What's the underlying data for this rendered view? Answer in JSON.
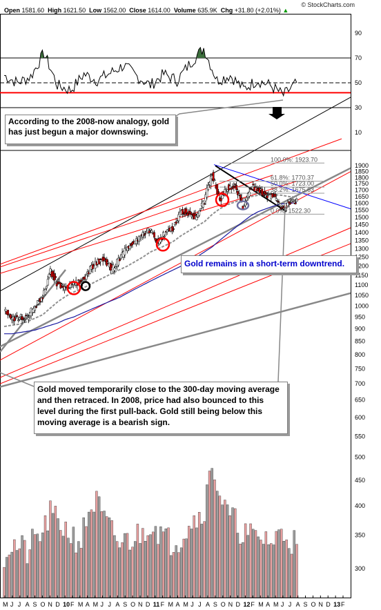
{
  "header": {
    "credit": "© StockCharts.com",
    "open_label": "Open",
    "open": "1581.60",
    "high_label": "High",
    "high": "1621.50",
    "low_label": "Low",
    "low": "1562.00",
    "close_label": "Close",
    "close": "1614.00",
    "volume_label": "Volume",
    "volume": "635.9K",
    "chg_label": "Chg",
    "chg": "+31.80 (+2.01%)",
    "up_arrow": "▲"
  },
  "annotations": {
    "rsi_note": "According to the 2008-now analogy, gold has just begun a major downswing.",
    "downtrend_note": "Gold remains in a short-term downtrend.",
    "ma_note": "Gold moved temporarily close to the 300-day moving average and then retraced. In 2008, price had also bounced to this level during the first pull-back. Gold still being below this moving average is a bearish sign."
  },
  "colors": {
    "up_candle": "#ffffff",
    "down_candle": "#cc0000",
    "ma_short": "#909090",
    "ma_long": "#1a1aa0",
    "support": "#ff0000",
    "rsi_fill": "#3c6e3c",
    "volume_down": "#e8a0a0",
    "volume_up": "#a0a0a0",
    "highlight_circle": "#ff0000"
  },
  "chart_data": [
    {
      "type": "line",
      "panel": "RSI",
      "y_ticks": [
        "90",
        "70",
        "50",
        "30",
        "10"
      ],
      "ylim": [
        0,
        100
      ],
      "overbought": 70,
      "mid": 50,
      "oversold": 30,
      "support_line": 42,
      "x": [
        "2009-05",
        "2009-07",
        "2009-09",
        "2009-10",
        "2009-12",
        "2010-02",
        "2010-04",
        "2010-06",
        "2010-08",
        "2010-10",
        "2010-12",
        "2011-02",
        "2011-04",
        "2011-06",
        "2011-07",
        "2011-08",
        "2011-09",
        "2011-10",
        "2011-12",
        "2012-02",
        "2012-04",
        "2012-06",
        "2012-07"
      ],
      "values": [
        56,
        50,
        55,
        74,
        48,
        44,
        57,
        52,
        58,
        64,
        55,
        48,
        57,
        52,
        66,
        78,
        52,
        56,
        45,
        52,
        48,
        40,
        50
      ]
    },
    {
      "type": "candlestick",
      "panel": "Price",
      "y_ticks": [
        "1900",
        "1850",
        "1800",
        "1750",
        "1700",
        "1650",
        "1600",
        "1550",
        "1500",
        "1450",
        "1400",
        "1350",
        "1300",
        "1250",
        "1200",
        "1150",
        "1100",
        "1050",
        "1000",
        "950",
        "900",
        "850",
        "800",
        "750",
        "700",
        "650",
        "600",
        "550",
        "500",
        "450",
        "400",
        "350",
        "300"
      ],
      "x_ticks": [
        "M",
        "J",
        "J",
        "A",
        "S",
        "O",
        "N",
        "D",
        "10",
        "F",
        "M",
        "A",
        "M",
        "J",
        "J",
        "A",
        "S",
        "O",
        "N",
        "D",
        "11",
        "F",
        "M",
        "A",
        "M",
        "J",
        "J",
        "A",
        "S",
        "O",
        "N",
        "D",
        "12",
        "F",
        "M",
        "A",
        "M",
        "J",
        "J",
        "A",
        "S",
        "O",
        "N",
        "D",
        "13",
        "F"
      ],
      "fib_levels": [
        {
          "label": "100.0%: 1923.70",
          "value": 1923.7
        },
        {
          "label": "61.8%: 1770.37",
          "value": 1770.37
        },
        {
          "label": "50.0%: 1723.00",
          "value": 1723.0
        },
        {
          "label": "38.2%: 1675.63",
          "value": 1675.63
        },
        {
          "label": "0.0%: 1522.30",
          "value": 1522.3
        }
      ],
      "x": [
        "2009-05",
        "2009-06",
        "2009-07",
        "2009-08",
        "2009-09",
        "2009-10",
        "2009-11",
        "2009-12",
        "2010-01",
        "2010-02",
        "2010-03",
        "2010-04",
        "2010-05",
        "2010-06",
        "2010-07",
        "2010-08",
        "2010-09",
        "2010-10",
        "2010-11",
        "2010-12",
        "2011-01",
        "2011-02",
        "2011-03",
        "2011-04",
        "2011-05",
        "2011-06",
        "2011-07",
        "2011-08",
        "2011-09",
        "2011-10",
        "2011-11",
        "2011-12",
        "2012-01",
        "2012-02",
        "2012-03",
        "2012-04",
        "2012-05",
        "2012-06",
        "2012-07"
      ],
      "close": [
        980,
        940,
        950,
        950,
        1000,
        1040,
        1170,
        1100,
        1080,
        1110,
        1115,
        1175,
        1220,
        1240,
        1180,
        1240,
        1305,
        1350,
        1380,
        1420,
        1330,
        1410,
        1430,
        1550,
        1530,
        1500,
        1620,
        1830,
        1620,
        1720,
        1740,
        1570,
        1730,
        1700,
        1665,
        1650,
        1560,
        1600,
        1614
      ],
      "ma_short": [
        910,
        915,
        920,
        930,
        945,
        960,
        990,
        1020,
        1045,
        1065,
        1080,
        1100,
        1120,
        1140,
        1160,
        1180,
        1200,
        1225,
        1250,
        1280,
        1300,
        1320,
        1345,
        1380,
        1410,
        1440,
        1470,
        1520,
        1560,
        1590,
        1610,
        1630,
        1650,
        1660,
        1665,
        1665,
        1660,
        1650,
        1645
      ],
      "ma_long": [
        880,
        880,
        885,
        890,
        895,
        905,
        915,
        925,
        940,
        950,
        965,
        980,
        995,
        1010,
        1025,
        1040,
        1060,
        1080,
        1100,
        1120,
        1140,
        1160,
        1180,
        1200,
        1225,
        1250,
        1280,
        1310,
        1350,
        1390,
        1430,
        1470,
        1510,
        1540,
        1560,
        1580,
        1595,
        1600,
        1605
      ]
    },
    {
      "type": "bar",
      "panel": "Volume",
      "values": [
        330,
        340,
        335,
        330,
        345,
        355,
        380,
        370,
        360,
        350,
        345,
        385,
        400,
        370,
        355,
        340,
        345,
        350,
        355,
        370,
        360,
        345,
        345,
        350,
        370,
        375,
        390,
        460,
        410,
        380,
        370,
        355,
        350,
        345,
        350,
        340,
        360,
        350,
        340
      ]
    }
  ]
}
